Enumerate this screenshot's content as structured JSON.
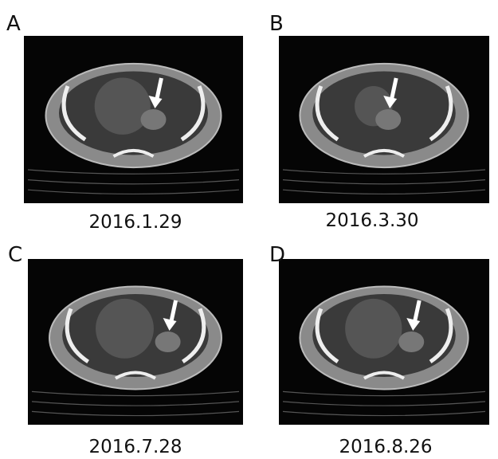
{
  "panels": [
    {
      "label": "A",
      "date": "2016.1.29"
    },
    {
      "label": "B",
      "date": "2016.3.30"
    },
    {
      "label": "C",
      "date": "2016.7.28"
    },
    {
      "label": "D",
      "date": "2016.8.26"
    }
  ]
}
